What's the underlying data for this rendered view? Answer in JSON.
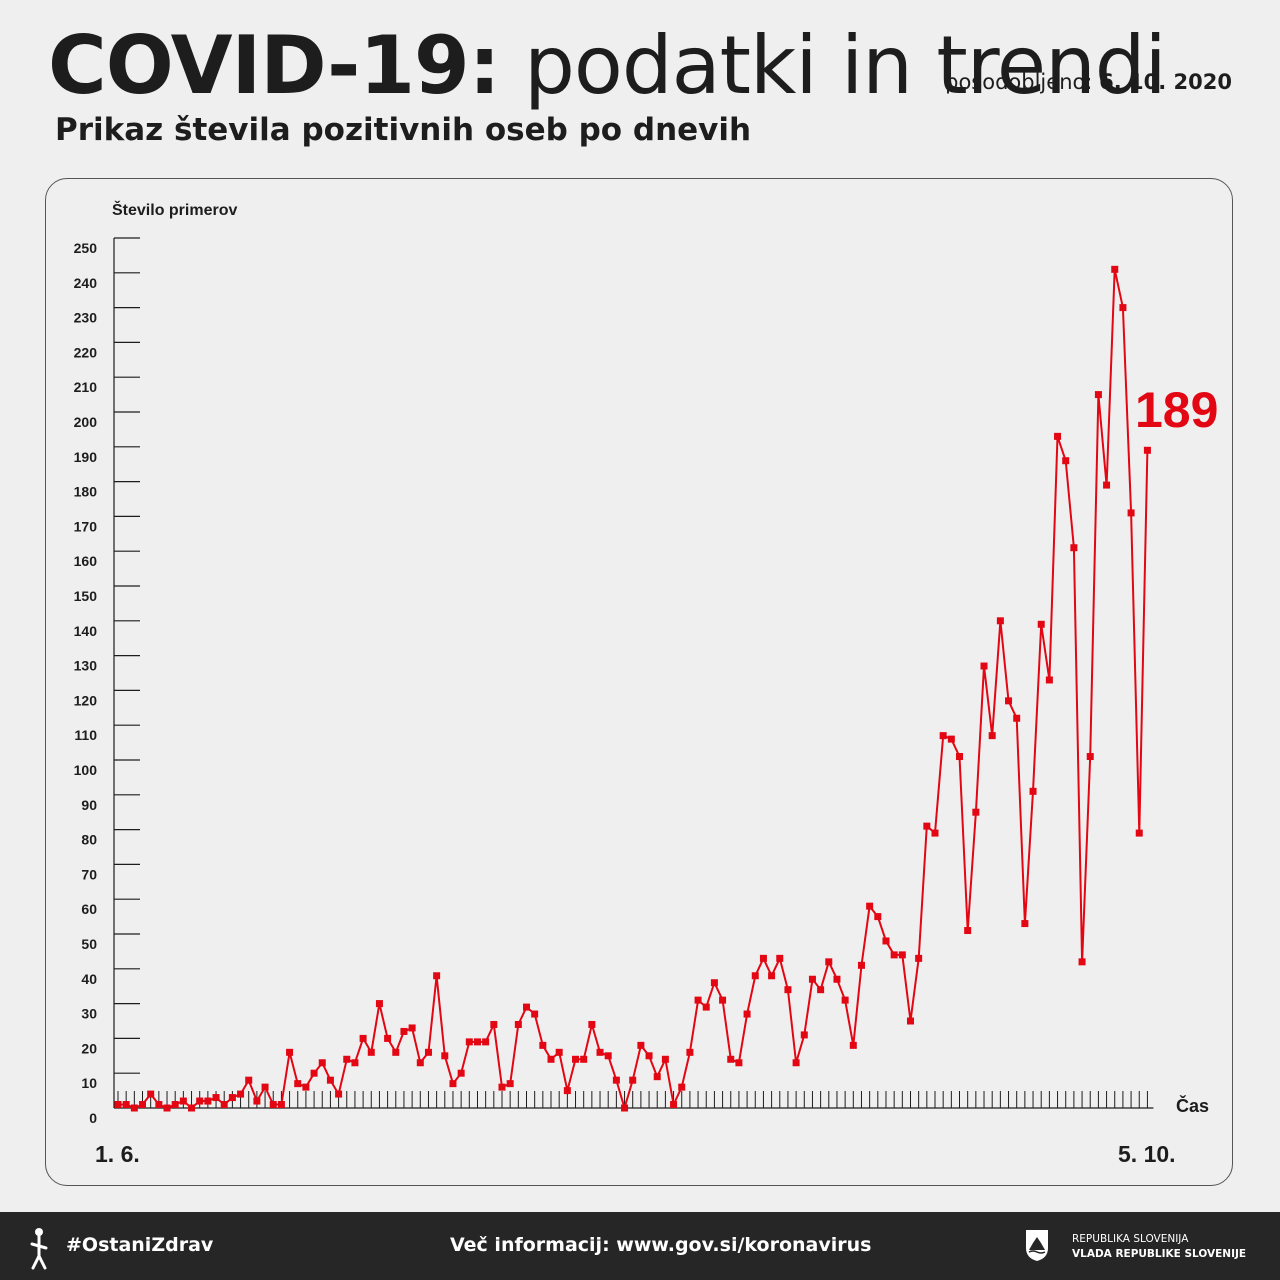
{
  "header": {
    "title_bold": "COVID-19:",
    "title_light": "podatki in trendi",
    "updated_label": "posodobljeno:",
    "updated_date": "6. 10. 2020",
    "subtitle": "Prikaz števila pozitivnih oseb po dnevih"
  },
  "chart_data": {
    "type": "line",
    "ylabel": "Število primerov",
    "xlabel": "Čas",
    "ylim": [
      0,
      250
    ],
    "yticks": [
      "0",
      "10",
      "20",
      "30",
      "40",
      "50",
      "60",
      "70",
      "80",
      "90",
      "100",
      "110",
      "120",
      "130",
      "140",
      "150",
      "160",
      "170",
      "180",
      "190",
      "200",
      "210",
      "220",
      "230",
      "240",
      "250"
    ],
    "x_start_label": "1. 6.",
    "x_end_label": "5. 10.",
    "last_value_label": "189",
    "series": [
      {
        "values": [
          1,
          1,
          0,
          1,
          4,
          1,
          0,
          1,
          2,
          0,
          2,
          2,
          3,
          1,
          3,
          4,
          8,
          2,
          6,
          1,
          1,
          16,
          7,
          6,
          10,
          13,
          8,
          4,
          14,
          13,
          20,
          16,
          30,
          20,
          16,
          22,
          23,
          13,
          16,
          38,
          15,
          7,
          10,
          19,
          19,
          19,
          24,
          6,
          7,
          24,
          29,
          27,
          18,
          14,
          16,
          5,
          14,
          14,
          24,
          16,
          15,
          8,
          0,
          8,
          18,
          15,
          9,
          14,
          1,
          6,
          16,
          31,
          29,
          36,
          31,
          14,
          13,
          27,
          38,
          43,
          38,
          43,
          34,
          13,
          21,
          37,
          34,
          42,
          37,
          31,
          18,
          41,
          58,
          55,
          48,
          44,
          44,
          25,
          43,
          81,
          79,
          107,
          106,
          101,
          51,
          85,
          127,
          107,
          140,
          117,
          112,
          53,
          91,
          139,
          123,
          193,
          186,
          161,
          42,
          101,
          205,
          179,
          241,
          230,
          171,
          79,
          189
        ],
        "color": "#e30613"
      }
    ],
    "legend": "none",
    "grid": false
  },
  "footer": {
    "hashtag": "#OstaniZdrav",
    "info": "Več informacij: www.gov.si/koronavirus",
    "gov_line1": "REPUBLIKA SLOVENIJA",
    "gov_line2": "VLADA REPUBLIKE SLOVENIJE"
  }
}
